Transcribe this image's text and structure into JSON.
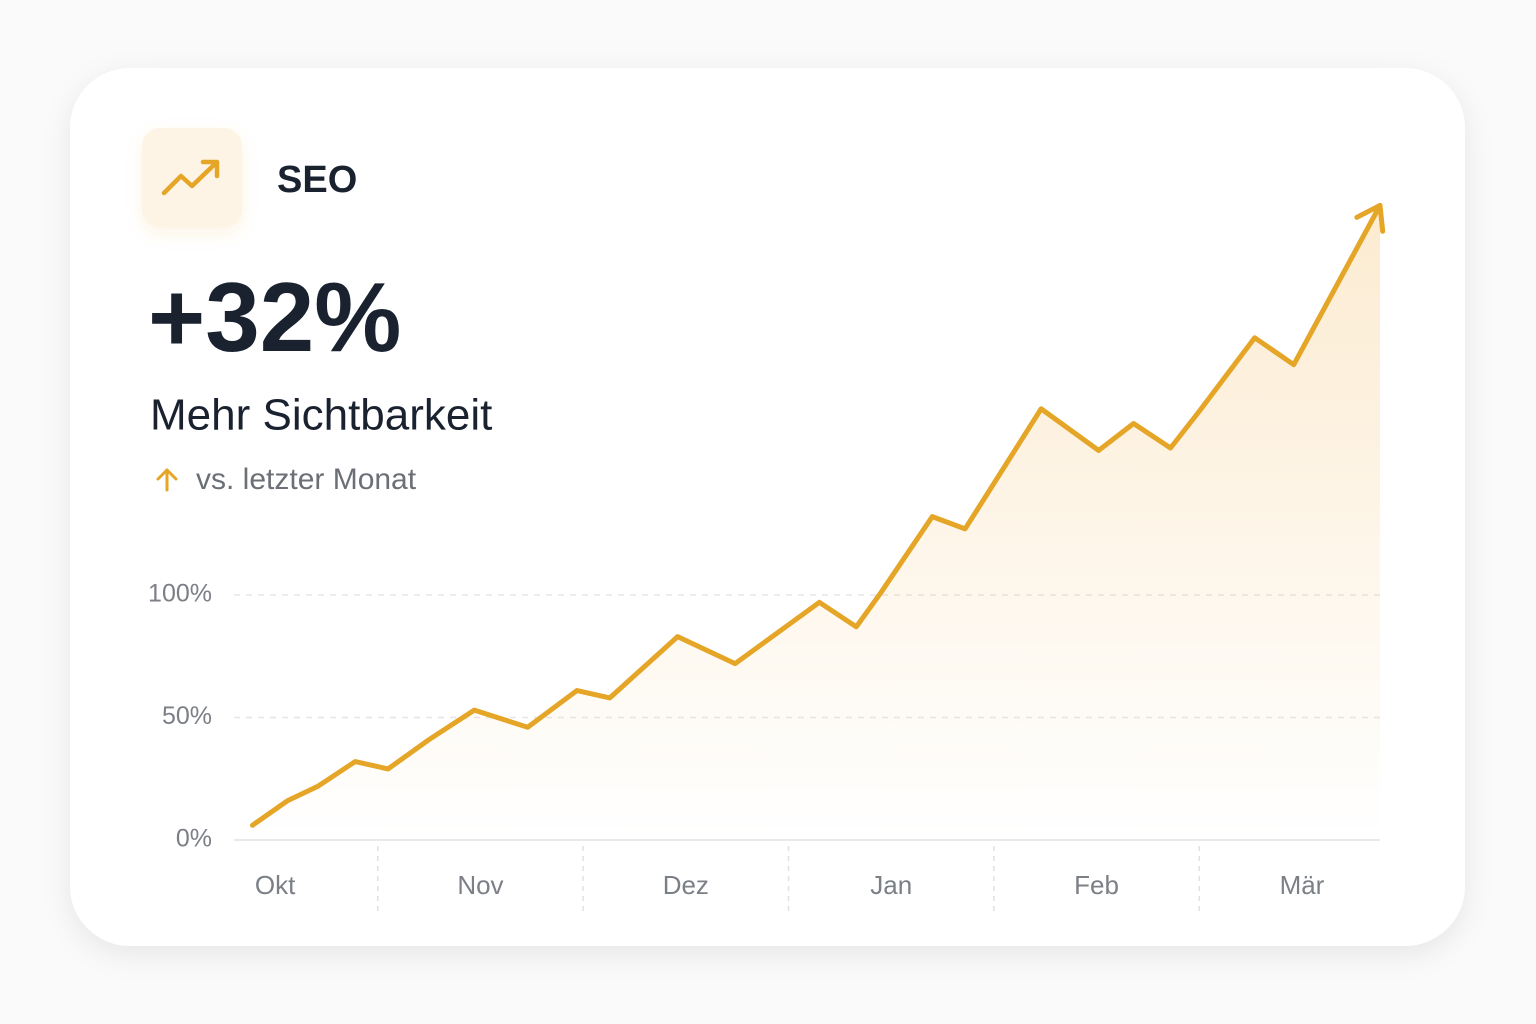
{
  "card": {
    "title": "SEO",
    "kpi_value": "+32%",
    "kpi_label": "Mehr Sichtbarkeit",
    "comparison": "vs. letzter Monat"
  },
  "chart_data": {
    "type": "line",
    "color": "#e5a526",
    "grid": true,
    "x": [
      -0.11,
      0.06,
      0.21,
      0.39,
      0.55,
      0.75,
      0.97,
      1.23,
      1.47,
      1.63,
      1.96,
      2.24,
      2.65,
      2.83,
      2.95,
      3.2,
      3.36,
      3.73,
      4.01,
      4.18,
      4.36,
      4.5,
      4.77,
      4.96,
      5.38
    ],
    "values": [
      6,
      16,
      22,
      32,
      29,
      41,
      53,
      46,
      61,
      58,
      83,
      72,
      97,
      87,
      101,
      132,
      127,
      176,
      159,
      170,
      160,
      175,
      205,
      194,
      259
    ],
    "xlim": [
      -0.2,
      5.38
    ],
    "xticks": [
      {
        "value": 0,
        "label": "Okt"
      },
      {
        "value": 1,
        "label": "Nov"
      },
      {
        "value": 2,
        "label": "Dez"
      },
      {
        "value": 3,
        "label": "Jan"
      },
      {
        "value": 4,
        "label": "Feb"
      },
      {
        "value": 5,
        "label": "Mär"
      }
    ],
    "ylim": [
      0,
      260
    ],
    "yticks": [
      {
        "value": 0,
        "label": "0%"
      },
      {
        "value": 50,
        "label": "50%"
      },
      {
        "value": 100,
        "label": "100%"
      }
    ]
  }
}
